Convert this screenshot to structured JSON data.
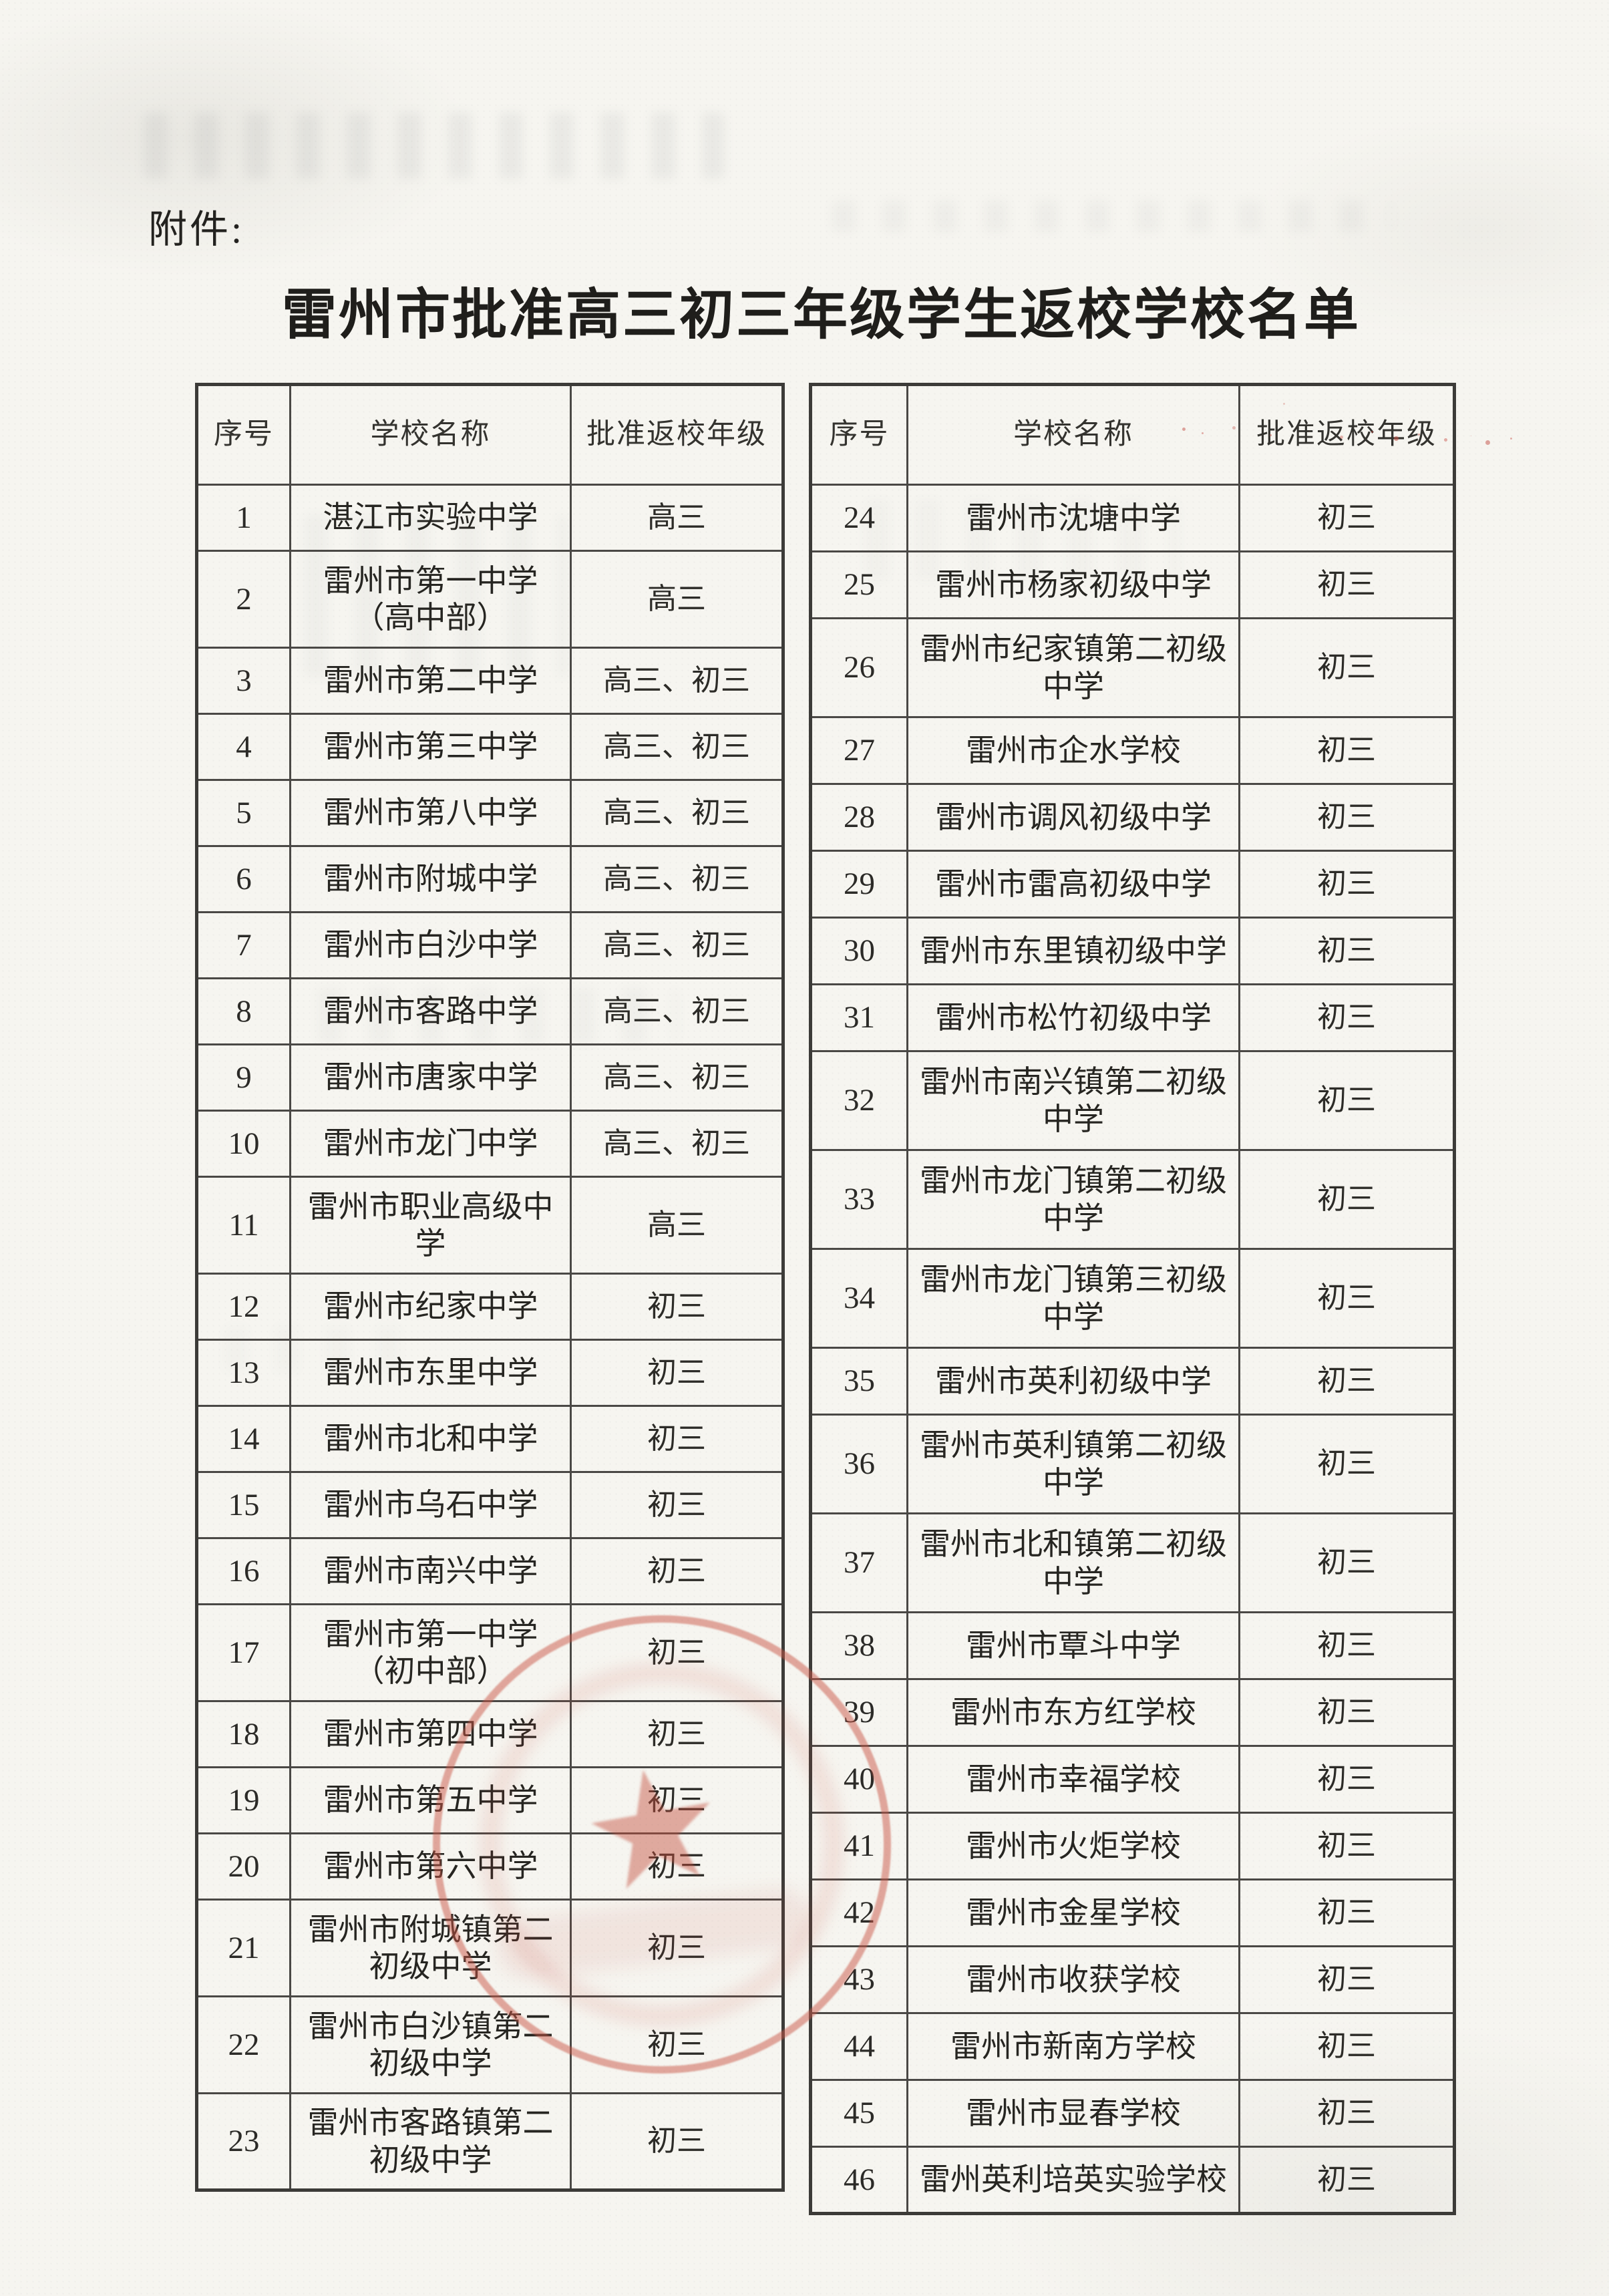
{
  "page": {
    "attachment_label": "附件:",
    "title": "雷州市批准高三初三年级学生返校学校名单"
  },
  "columns": {
    "no": "序号",
    "school": "学校名称",
    "grade": "批准返校年级"
  },
  "left_rows": [
    {
      "no": "1",
      "school": "湛江市实验中学",
      "grade": "高三"
    },
    {
      "no": "2",
      "school": "雷州市第一中学\n（高中部）",
      "grade": "高三"
    },
    {
      "no": "3",
      "school": "雷州市第二中学",
      "grade": "高三、初三"
    },
    {
      "no": "4",
      "school": "雷州市第三中学",
      "grade": "高三、初三"
    },
    {
      "no": "5",
      "school": "雷州市第八中学",
      "grade": "高三、初三"
    },
    {
      "no": "6",
      "school": "雷州市附城中学",
      "grade": "高三、初三"
    },
    {
      "no": "7",
      "school": "雷州市白沙中学",
      "grade": "高三、初三"
    },
    {
      "no": "8",
      "school": "雷州市客路中学",
      "grade": "高三、初三"
    },
    {
      "no": "9",
      "school": "雷州市唐家中学",
      "grade": "高三、初三"
    },
    {
      "no": "10",
      "school": "雷州市龙门中学",
      "grade": "高三、初三"
    },
    {
      "no": "11",
      "school": "雷州市职业高级中\n学",
      "grade": "高三"
    },
    {
      "no": "12",
      "school": "雷州市纪家中学",
      "grade": "初三"
    },
    {
      "no": "13",
      "school": "雷州市东里中学",
      "grade": "初三"
    },
    {
      "no": "14",
      "school": "雷州市北和中学",
      "grade": "初三"
    },
    {
      "no": "15",
      "school": "雷州市乌石中学",
      "grade": "初三"
    },
    {
      "no": "16",
      "school": "雷州市南兴中学",
      "grade": "初三"
    },
    {
      "no": "17",
      "school": "雷州市第一中学\n（初中部）",
      "grade": "初三"
    },
    {
      "no": "18",
      "school": "雷州市第四中学",
      "grade": "初三"
    },
    {
      "no": "19",
      "school": "雷州市第五中学",
      "grade": "初三"
    },
    {
      "no": "20",
      "school": "雷州市第六中学",
      "grade": "初三"
    },
    {
      "no": "21",
      "school": "雷州市附城镇第二\n初级中学",
      "grade": "初三"
    },
    {
      "no": "22",
      "school": "雷州市白沙镇第二\n初级中学",
      "grade": "初三"
    },
    {
      "no": "23",
      "school": "雷州市客路镇第二\n初级中学",
      "grade": "初三"
    }
  ],
  "right_rows": [
    {
      "no": "24",
      "school": "雷州市沈塘中学",
      "grade": "初三"
    },
    {
      "no": "25",
      "school": "雷州市杨家初级中学",
      "grade": "初三"
    },
    {
      "no": "26",
      "school": "雷州市纪家镇第二初级\n中学",
      "grade": "初三"
    },
    {
      "no": "27",
      "school": "雷州市企水学校",
      "grade": "初三"
    },
    {
      "no": "28",
      "school": "雷州市调风初级中学",
      "grade": "初三"
    },
    {
      "no": "29",
      "school": "雷州市雷高初级中学",
      "grade": "初三"
    },
    {
      "no": "30",
      "school": "雷州市东里镇初级中学",
      "grade": "初三"
    },
    {
      "no": "31",
      "school": "雷州市松竹初级中学",
      "grade": "初三"
    },
    {
      "no": "32",
      "school": "雷州市南兴镇第二初级\n中学",
      "grade": "初三"
    },
    {
      "no": "33",
      "school": "雷州市龙门镇第二初级\n中学",
      "grade": "初三"
    },
    {
      "no": "34",
      "school": "雷州市龙门镇第三初级\n中学",
      "grade": "初三"
    },
    {
      "no": "35",
      "school": "雷州市英利初级中学",
      "grade": "初三"
    },
    {
      "no": "36",
      "school": "雷州市英利镇第二初级\n中学",
      "grade": "初三"
    },
    {
      "no": "37",
      "school": "雷州市北和镇第二初级\n中学",
      "grade": "初三"
    },
    {
      "no": "38",
      "school": "雷州市覃斗中学",
      "grade": "初三"
    },
    {
      "no": "39",
      "school": "雷州市东方红学校",
      "grade": "初三"
    },
    {
      "no": "40",
      "school": "雷州市幸福学校",
      "grade": "初三"
    },
    {
      "no": "41",
      "school": "雷州市火炬学校",
      "grade": "初三"
    },
    {
      "no": "42",
      "school": "雷州市金星学校",
      "grade": "初三"
    },
    {
      "no": "43",
      "school": "雷州市收获学校",
      "grade": "初三"
    },
    {
      "no": "44",
      "school": "雷州市新南方学校",
      "grade": "初三"
    },
    {
      "no": "45",
      "school": "雷州市显春学校",
      "grade": "初三"
    },
    {
      "no": "46",
      "school": "雷州英利培英实验学校",
      "grade": "初三"
    }
  ],
  "stamp": {
    "star_icon": "★",
    "seal_color": "#c4564a"
  }
}
